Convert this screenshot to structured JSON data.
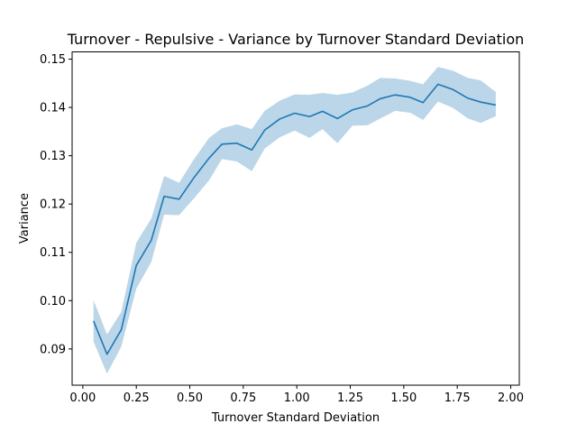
{
  "chart_data": {
    "type": "line",
    "title": "Turnover - Repulsive - Variance by Turnover Standard Deviation",
    "xlabel": "Turnover Standard Deviation",
    "ylabel": "Variance",
    "xlim": [
      -0.05,
      2.04
    ],
    "ylim": [
      0.0825,
      0.1515
    ],
    "xticks": [
      0.0,
      0.25,
      0.5,
      0.75,
      1.0,
      1.25,
      1.5,
      1.75,
      2.0
    ],
    "xtick_labels": [
      "0.00",
      "0.25",
      "0.50",
      "0.75",
      "1.00",
      "1.25",
      "1.50",
      "1.75",
      "2.00"
    ],
    "yticks": [
      0.09,
      0.1,
      0.11,
      0.12,
      0.13,
      0.14,
      0.15
    ],
    "ytick_labels": [
      "0.09",
      "0.10",
      "0.11",
      "0.12",
      "0.13",
      "0.14",
      "0.15"
    ],
    "grid": false,
    "legend": "none",
    "colors": {
      "line": "#1f77b4",
      "band": "#1f77b4",
      "band_opacity": 0.3
    },
    "x": [
      0.05,
      0.113,
      0.18,
      0.25,
      0.32,
      0.38,
      0.45,
      0.52,
      0.59,
      0.65,
      0.72,
      0.79,
      0.85,
      0.92,
      0.99,
      1.06,
      1.12,
      1.19,
      1.26,
      1.33,
      1.39,
      1.46,
      1.53,
      1.59,
      1.66,
      1.73,
      1.8,
      1.86,
      1.93
    ],
    "series": [
      {
        "values": [
          0.0958,
          0.0889,
          0.094,
          0.1073,
          0.1125,
          0.1216,
          0.121,
          0.1255,
          0.1295,
          0.1324,
          0.1326,
          0.1312,
          0.1353,
          0.1376,
          0.1388,
          0.1381,
          0.1392,
          0.1377,
          0.1395,
          0.1403,
          0.1418,
          0.1426,
          0.1421,
          0.141,
          0.1448,
          0.1437,
          0.1419,
          0.1411,
          0.1405
        ],
        "lower": [
          0.0915,
          0.0849,
          0.0905,
          0.1025,
          0.108,
          0.1178,
          0.1177,
          0.1212,
          0.1249,
          0.1293,
          0.1288,
          0.1268,
          0.1315,
          0.1338,
          0.1352,
          0.1337,
          0.1355,
          0.1326,
          0.1362,
          0.1363,
          0.1377,
          0.1393,
          0.1389,
          0.1374,
          0.1412,
          0.1399,
          0.1377,
          0.1368,
          0.1382
        ],
        "upper": [
          0.1001,
          0.093,
          0.0977,
          0.112,
          0.117,
          0.1258,
          0.1244,
          0.1293,
          0.1337,
          0.1357,
          0.1365,
          0.1355,
          0.1393,
          0.1414,
          0.1427,
          0.1426,
          0.143,
          0.1426,
          0.1431,
          0.1445,
          0.1461,
          0.146,
          0.1455,
          0.1448,
          0.1484,
          0.1476,
          0.1461,
          0.1456,
          0.1432
        ]
      }
    ]
  }
}
